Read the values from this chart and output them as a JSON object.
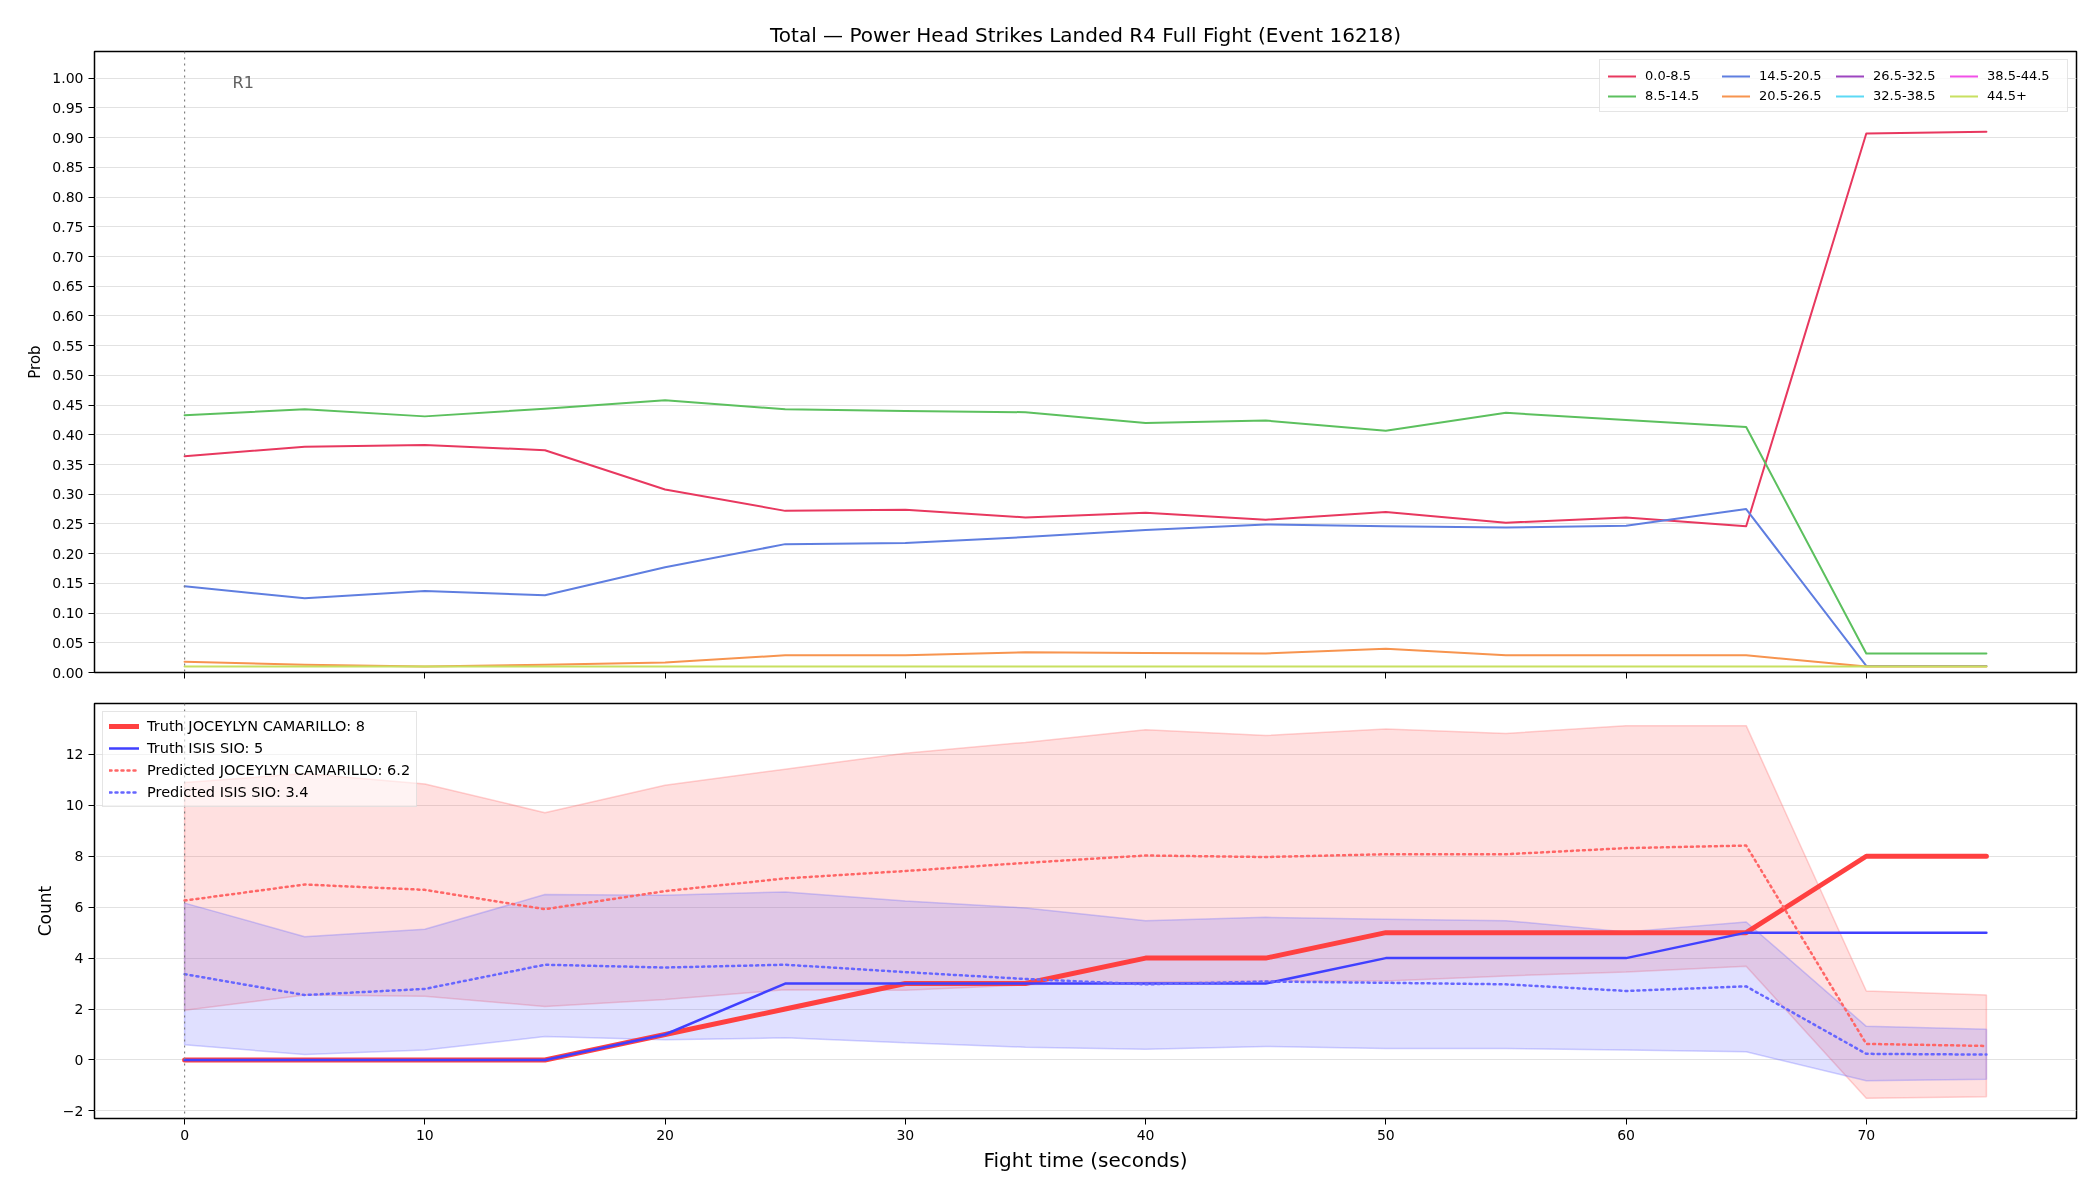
{
  "chart_data": [
    {
      "type": "line",
      "title": "Total — Power Head Strikes Landed R4 Full Fight (Event 16218)",
      "ylabel": "Prob",
      "x": [
        0,
        5,
        10,
        15,
        20,
        25,
        30,
        35,
        40,
        45,
        50,
        55,
        60,
        65,
        70,
        75
      ],
      "series": [
        {
          "name": "0.0-8.5",
          "color": "#e8385f",
          "values": [
            0.364,
            0.38,
            0.383,
            0.374,
            0.308,
            0.272,
            0.274,
            0.261,
            0.269,
            0.257,
            0.27,
            0.252,
            0.261,
            0.246,
            0.907,
            0.91
          ]
        },
        {
          "name": "8.5-14.5",
          "color": "#5cc05e",
          "values": [
            0.433,
            0.443,
            0.431,
            0.444,
            0.458,
            0.443,
            0.44,
            0.438,
            0.42,
            0.424,
            0.407,
            0.437,
            0.425,
            0.413,
            0.032,
            0.032
          ]
        },
        {
          "name": "14.5-20.5",
          "color": "#5f7ee0",
          "values": [
            0.145,
            0.125,
            0.137,
            0.13,
            0.177,
            0.216,
            0.218,
            0.228,
            0.24,
            0.249,
            0.246,
            0.244,
            0.247,
            0.275,
            0.011,
            0.011
          ]
        },
        {
          "name": "20.5-26.5",
          "color": "#f7944f",
          "values": [
            0.018,
            0.013,
            0.01,
            0.013,
            0.017,
            0.029,
            0.029,
            0.034,
            0.033,
            0.032,
            0.04,
            0.029,
            0.029,
            0.029,
            0.01,
            0.01
          ]
        },
        {
          "name": "26.5-32.5",
          "color": "#9d45c0",
          "values": [
            null,
            null,
            null,
            null,
            null,
            null,
            null,
            null,
            null,
            null,
            null,
            null,
            null,
            null,
            null,
            null
          ]
        },
        {
          "name": "32.5-38.5",
          "color": "#5cd9f5",
          "values": [
            null,
            null,
            null,
            null,
            null,
            null,
            null,
            null,
            null,
            null,
            null,
            null,
            null,
            null,
            null,
            null
          ]
        },
        {
          "name": "38.5-44.5",
          "color": "#f150e8",
          "values": [
            null,
            null,
            null,
            null,
            null,
            null,
            null,
            null,
            null,
            null,
            null,
            null,
            null,
            null,
            null,
            null
          ]
        },
        {
          "name": "44.5+",
          "color": "#c8e060",
          "values": [
            0.01,
            0.01,
            0.01,
            0.01,
            0.01,
            0.01,
            0.01,
            0.01,
            0.01,
            0.01,
            0.01,
            0.01,
            0.01,
            0.01,
            0.01,
            0.01
          ]
        }
      ],
      "xlim": [
        -3.75,
        78.75
      ],
      "ylim": [
        0,
        1.045
      ],
      "xticks": [
        0,
        10,
        20,
        30,
        40,
        50,
        60,
        70
      ],
      "yticks": [
        {
          "value": 0,
          "label": "0.00"
        },
        0.05,
        {
          "value": 0.1,
          "label": "0.10"
        },
        0.15,
        {
          "value": 0.2,
          "label": "0.20"
        },
        0.25,
        {
          "value": 0.3,
          "label": "0.30"
        },
        0.35,
        {
          "value": 0.4,
          "label": "0.40"
        },
        0.45,
        {
          "value": 0.5,
          "label": "0.50"
        },
        0.55,
        {
          "value": 0.6,
          "label": "0.60"
        },
        0.65,
        {
          "value": 0.7,
          "label": "0.70"
        },
        0.75,
        {
          "value": 0.8,
          "label": "0.80"
        },
        0.85,
        {
          "value": 0.9,
          "label": "0.90"
        },
        0.95,
        {
          "value": 1,
          "label": "1.00"
        }
      ],
      "ref_lines": [
        {
          "axis": "x",
          "value": 0,
          "label": "R1",
          "color": "#808080",
          "line_style": "dotted"
        }
      ],
      "grid": "y",
      "legend": "top right",
      "tick_labels": "y"
    },
    {
      "type": "line",
      "xlabel": "Fight time (seconds)",
      "ylabel": "Count",
      "x": [
        0,
        5,
        10,
        15,
        20,
        25,
        30,
        35,
        40,
        45,
        50,
        55,
        60,
        65,
        70,
        75
      ],
      "series": [
        {
          "name": "Truth JOCEYLYN CAMARILLO: 8",
          "color": "#ff4040",
          "line_style": "solid",
          "values": [
            0,
            0,
            0,
            0,
            1,
            2,
            3,
            3,
            4,
            4,
            5,
            5,
            5,
            5,
            8,
            8
          ]
        },
        {
          "name": "Truth ISIS SIO: 5",
          "color": "#4040ff",
          "line_style": "solid",
          "values": [
            0,
            0,
            0,
            0,
            1,
            3,
            3,
            3,
            3,
            3,
            4,
            4,
            4,
            5,
            5,
            5
          ]
        },
        {
          "name": "Predicted JOCEYLYN CAMARILLO: 6.2",
          "color": "#ff6666",
          "line_style": "dotted",
          "values": [
            6.26,
            6.89,
            6.68,
            5.92,
            6.63,
            7.13,
            7.42,
            7.74,
            8.03,
            7.97,
            8.08,
            8.08,
            8.32,
            8.42,
            0.63,
            0.55
          ],
          "lower": [
            1.95,
            2.55,
            2.5,
            2.1,
            2.37,
            2.76,
            2.74,
            2.95,
            3.05,
            3.1,
            3.1,
            3.3,
            3.45,
            3.68,
            -1.5,
            -1.45
          ],
          "upper": [
            10.9,
            11.25,
            10.84,
            9.71,
            10.79,
            11.42,
            12.05,
            12.47,
            12.97,
            12.74,
            13.0,
            12.82,
            13.13,
            13.13,
            2.71,
            2.55
          ]
        },
        {
          "name": "Predicted ISIS SIO: 3.4",
          "color": "#6666ff",
          "line_style": "dotted",
          "values": [
            3.37,
            2.55,
            2.79,
            3.74,
            3.63,
            3.74,
            3.45,
            3.18,
            2.97,
            3.08,
            3.03,
            2.97,
            2.71,
            2.89,
            0.24,
            0.21
          ],
          "lower": [
            0.6,
            0.21,
            0.39,
            0.92,
            0.79,
            0.87,
            0.68,
            0.5,
            0.42,
            0.53,
            0.45,
            0.45,
            0.39,
            0.32,
            -0.82,
            -0.76
          ],
          "upper": [
            6.16,
            4.84,
            5.13,
            6.5,
            6.47,
            6.6,
            6.24,
            5.97,
            5.47,
            5.6,
            5.53,
            5.47,
            5.03,
            5.42,
            1.32,
            1.21
          ]
        }
      ],
      "xlim": [
        -3.75,
        78.75
      ],
      "ylim": [
        -2.3,
        14.0
      ],
      "xticks": [
        0,
        10,
        20,
        30,
        40,
        50,
        60,
        70
      ],
      "yticks": [
        {
          "value": -2,
          "label": "−2"
        },
        0,
        2,
        4,
        6,
        8,
        10,
        12
      ],
      "ref_lines": [
        {
          "axis": "x",
          "value": 0,
          "color": "#808080",
          "line_style": "dotted"
        }
      ],
      "grid": "y",
      "legend": "top left"
    }
  ]
}
